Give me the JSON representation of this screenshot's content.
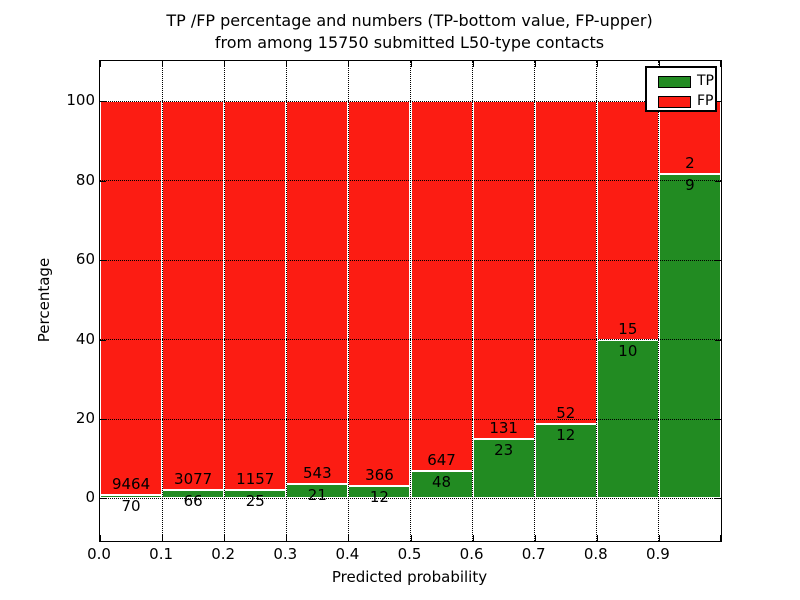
{
  "figure": {
    "title_line1": "TP /FP percentage and numbers (TP-bottom value, FP-upper)",
    "title_line2": "from among 15750 submitted L50-type contacts"
  },
  "axes": {
    "xlabel": "Predicted probability",
    "ylabel": "Percentage",
    "x_tick_labels": [
      "0.0",
      "0.1",
      "0.2",
      "0.3",
      "0.4",
      "0.5",
      "0.6",
      "0.7",
      "0.8",
      "0.9"
    ],
    "y_tick_values": [
      0,
      20,
      40,
      60,
      80,
      100
    ]
  },
  "legend": {
    "entries": [
      {
        "label": "TP",
        "color": "#228b22"
      },
      {
        "label": "FP",
        "color": "#fc1c13"
      }
    ]
  },
  "colors": {
    "tp_green": "#228b22",
    "fp_red": "#fc1c13",
    "bar_edge": "#ffffff",
    "grid": "#000000"
  },
  "chart_data": {
    "type": "bar",
    "stacked": true,
    "normalized": "each bin scaled to 100% of bin total; count labels shown at TP/FP boundary",
    "title": "TP /FP percentage and numbers (TP-bottom value, FP-upper) from among 15750 submitted L50-type contacts",
    "xlabel": "Predicted probability",
    "ylabel": "Percentage",
    "xlim": [
      0.0,
      1.0
    ],
    "ylim": [
      -10.8,
      110.2
    ],
    "bin_width": 0.1,
    "categories": [
      "0.0-0.1",
      "0.1-0.2",
      "0.2-0.3",
      "0.3-0.4",
      "0.4-0.5",
      "0.5-0.6",
      "0.6-0.7",
      "0.7-0.8",
      "0.8-0.9",
      "0.9-1.0"
    ],
    "series": [
      {
        "name": "TP",
        "color": "#228b22",
        "counts": [
          70,
          66,
          25,
          21,
          12,
          48,
          23,
          12,
          10,
          9
        ]
      },
      {
        "name": "FP",
        "color": "#fc1c13",
        "counts": [
          9464,
          3077,
          1157,
          543,
          366,
          647,
          131,
          52,
          15,
          2
        ]
      }
    ],
    "tp_percent_per_bin": [
      0.73,
      2.1,
      2.11,
      3.72,
      3.17,
      6.91,
      14.94,
      18.75,
      40.0,
      81.82
    ],
    "total_submitted": 15750,
    "legend_position": "upper right",
    "grid": "dotted black, x at every 0.1, y at every 20"
  }
}
